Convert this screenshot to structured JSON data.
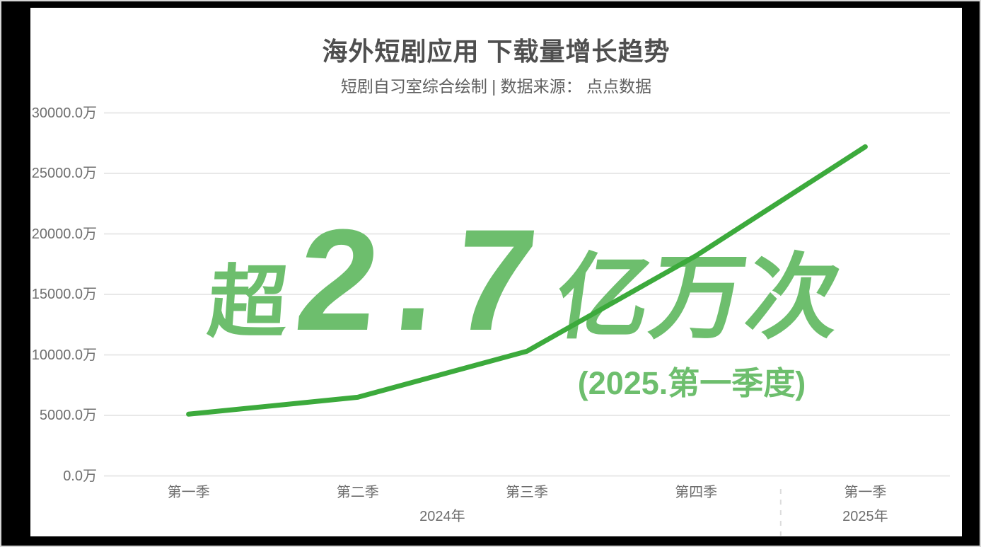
{
  "header": {
    "title": "海外短剧应用 下载量增长趋势",
    "subtitle": "短剧自习室综合绘制 | 数据来源： 点点数据"
  },
  "annotation": {
    "prefix": "超",
    "number": "2.7",
    "suffix": "亿万次",
    "period": "(2025.第一季度)"
  },
  "colors": {
    "line": "#3caa3c",
    "annotation": "#6dbe6d",
    "grid": "#e8e8e8",
    "separator": "#dcdcdc",
    "axis_text": "#6f6f6f",
    "title_text": "#4f4f4f",
    "subtitle_text": "#5f5f5f",
    "background": "#000000",
    "card": "#ffffff"
  },
  "chart_data": {
    "type": "line",
    "title": "海外短剧应用 下载量增长趋势",
    "subtitle": "短剧自习室综合绘制 | 数据来源： 点点数据",
    "categories": [
      "第一季",
      "第二季",
      "第三季",
      "第四季",
      "第一季"
    ],
    "category_groups": [
      {
        "label": "2024年",
        "span": 4
      },
      {
        "label": "2025年",
        "span": 1
      }
    ],
    "series": [
      {
        "name": "海外短剧应用下载量",
        "values": [
          5100,
          6500,
          10300,
          18200,
          27200
        ]
      }
    ],
    "unit": "万",
    "ylim": [
      0,
      30000
    ],
    "ytick_step": 5000,
    "ytick_labels": [
      "0.0万",
      "5000.0万",
      "10000.0万",
      "15000.0万",
      "20000.0万",
      "25000.0万",
      "30000.0万"
    ],
    "grid": true,
    "legend": "none",
    "separator_after_index": 3,
    "annotation_text": "超2.7亿万次 (2025.第一季度)"
  }
}
